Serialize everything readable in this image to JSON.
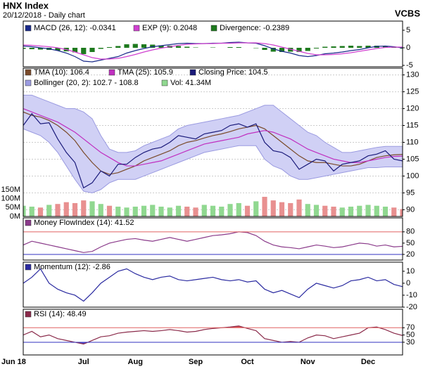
{
  "header": {
    "title": "HNX Index",
    "subtitle": "20/12/2018 - Daily chart",
    "brand": "VCBS"
  },
  "chart_data": [
    {
      "type": "line",
      "ylim": [
        -5.4,
        7.6
      ],
      "yticks": [
        5,
        0,
        -5
      ],
      "series": [
        {
          "name": "MACD (26, 12): -0.0341",
          "color": "#1a2a8a",
          "values": [
            0.5,
            0.3,
            0,
            -0.3,
            -0.8,
            -1.5,
            -2.5,
            -3.8,
            -4,
            -3.5,
            -3,
            -2.5,
            -1.5,
            -0.8,
            -0.2,
            0.3,
            0.6,
            0.9,
            1.2,
            1.3,
            1.2,
            1.2,
            1.3,
            1.3,
            1.5,
            1.6,
            1.4,
            1.3,
            0.6,
            -0.3,
            -1,
            -1.5,
            -2.2,
            -2.5,
            -2.2,
            -1.7,
            -1.5,
            -1.2,
            -0.8,
            -0.5,
            0,
            0.4,
            0.5,
            0.3,
            -0.0341
          ]
        },
        {
          "name": "EXP (9): 0.2048",
          "color": "#d040d0",
          "values": [
            0.8,
            0.7,
            0.5,
            0.3,
            0,
            -0.5,
            -1.2,
            -2,
            -2.8,
            -3.2,
            -3.2,
            -3,
            -2.5,
            -1.9,
            -1.2,
            -0.6,
            -0.1,
            0.3,
            0.7,
            1,
            1.1,
            1.2,
            1.2,
            1.3,
            1.3,
            1.4,
            1.4,
            1.4,
            1.2,
            0.8,
            0.2,
            -0.4,
            -1,
            -1.6,
            -2,
            -2,
            -1.9,
            -1.7,
            -1.4,
            -1,
            -0.6,
            -0.2,
            0.1,
            0.2,
            0.2048
          ]
        },
        {
          "name": "Divergence: -0.2389",
          "type": "bar",
          "color": "#1e7a1e",
          "values": [
            -0.3,
            -0.4,
            -0.5,
            -0.6,
            -0.8,
            -1,
            -1.3,
            -1.8,
            -1.2,
            -0.3,
            0.2,
            0.5,
            1,
            1.1,
            1,
            0.9,
            0.7,
            0.6,
            0.5,
            0.3,
            0.1,
            0,
            0.1,
            0,
            0.2,
            0.2,
            0,
            -0.1,
            -0.6,
            -1.1,
            -1.2,
            -1.1,
            -1.2,
            -0.9,
            -0.2,
            0.3,
            0.4,
            0.5,
            0.6,
            0.5,
            0.6,
            0.6,
            0.4,
            0.1,
            -0.2389
          ]
        }
      ]
    },
    {
      "type": "line",
      "ylim": [
        88,
        132
      ],
      "yticks": [
        90,
        95,
        100,
        105,
        110,
        115,
        120,
        125,
        130
      ],
      "grid": true,
      "y2lim": [
        0,
        830
      ],
      "y2ticks": [
        {
          "value": 0,
          "label": "0M"
        },
        {
          "value": 50,
          "label": "50M"
        },
        {
          "value": 100,
          "label": "100M"
        },
        {
          "value": 150,
          "label": "150M"
        }
      ],
      "series": [
        {
          "name": "TMA (10): 106.4",
          "color": "#7a4a2a",
          "values": [
            119,
            118,
            117.5,
            116.5,
            115,
            113,
            110.5,
            107,
            104,
            101.5,
            100.5,
            101,
            102,
            103,
            104.5,
            105.5,
            106.5,
            107.5,
            109,
            110,
            110.5,
            111.3,
            112,
            112.5,
            113.2,
            114,
            114.5,
            115,
            114,
            112,
            110,
            108,
            106,
            104.5,
            104,
            104,
            103.5,
            103,
            103,
            103.5,
            104.5,
            105.5,
            106,
            106.3,
            106.4
          ]
        },
        {
          "name": "TMA (25): 105.9",
          "color": "#c030c0",
          "values": [
            120,
            119,
            118,
            117,
            116,
            114.5,
            113,
            111,
            109,
            107,
            105.5,
            104,
            103,
            103,
            103.5,
            104,
            104.5,
            105.5,
            106.5,
            107.5,
            108.5,
            109.5,
            110,
            110.5,
            111,
            111.5,
            112.5,
            113,
            113.5,
            113,
            112,
            111,
            109.5,
            108,
            107,
            106,
            105,
            104.5,
            104,
            104,
            104.5,
            105,
            105.5,
            105.8,
            105.9
          ]
        },
        {
          "name": "Closing Price: 104.5",
          "color": "#1a1a7a",
          "values": [
            115,
            118.5,
            115.5,
            115.8,
            111,
            107,
            104,
            96.5,
            98,
            101.5,
            100,
            103.5,
            103.5,
            105.5,
            107,
            108,
            108.5,
            110,
            112,
            111.5,
            111,
            112.5,
            113,
            113.5,
            115,
            115.5,
            114.5,
            115.5,
            110,
            107.5,
            107,
            105.5,
            102,
            103.5,
            105,
            104.5,
            101.5,
            103.5,
            104,
            104.5,
            106,
            106.5,
            107.5,
            105,
            104.5
          ]
        },
        {
          "name": "Bollinger (20, 2): 102.7 - 108.8",
          "type": "band",
          "color": "#9a9ae0",
          "upper": [
            124,
            124,
            123,
            122,
            121,
            120,
            120,
            119,
            117,
            112,
            108,
            107,
            107,
            107.5,
            109,
            110,
            111,
            112,
            114,
            115,
            115.5,
            116,
            116.5,
            117,
            117.5,
            118,
            119,
            120,
            121,
            121,
            119,
            117,
            115,
            113,
            112,
            110,
            108.5,
            107,
            107,
            107.5,
            108,
            108.5,
            108.8,
            108.8,
            108.8
          ],
          "lower": [
            114,
            113,
            112,
            110,
            107,
            103,
            99,
            95.5,
            95,
            96,
            98,
            99,
            99,
            99,
            100,
            101,
            102,
            103,
            104,
            105,
            106,
            107,
            107.5,
            108,
            108.5,
            109,
            109,
            109,
            105,
            103,
            102,
            100,
            99,
            99,
            99.5,
            100,
            100.5,
            101,
            101.5,
            102,
            102.5,
            102.5,
            102.7,
            102.7,
            102.7
          ]
        },
        {
          "name": "Vol: 41.34M",
          "type": "bar",
          "axis": "y2",
          "color": "#90d890",
          "values": [
            60,
            55,
            50,
            65,
            70,
            80,
            75,
            90,
            85,
            70,
            60,
            55,
            50,
            55,
            60,
            65,
            55,
            50,
            60,
            55,
            50,
            65,
            60,
            55,
            70,
            75,
            60,
            85,
            110,
            90,
            80,
            75,
            95,
            70,
            65,
            60,
            55,
            50,
            55,
            60,
            65,
            60,
            55,
            50,
            41.34
          ]
        }
      ]
    },
    {
      "type": "line",
      "ylim": [
        5,
        117
      ],
      "yticks": [
        80,
        50,
        20
      ],
      "hlines": [
        {
          "value": 80,
          "color": "#e06060"
        },
        {
          "value": 20,
          "color": "#3030c0"
        }
      ],
      "series": [
        {
          "name": "Money FlowIndex (14): 41.52",
          "color": "#8a3a8a",
          "values": [
            45,
            55,
            50,
            45,
            40,
            35,
            30,
            25,
            28,
            40,
            50,
            55,
            60,
            62,
            58,
            55,
            60,
            65,
            60,
            55,
            60,
            65,
            70,
            72,
            75,
            80,
            78,
            70,
            55,
            45,
            40,
            38,
            35,
            40,
            45,
            42,
            38,
            40,
            45,
            50,
            48,
            42,
            45,
            40,
            41.52
          ]
        }
      ]
    },
    {
      "type": "line",
      "ylim": [
        -20,
        17.6
      ],
      "yticks": [
        10,
        0,
        -10,
        -20
      ],
      "series": [
        {
          "name": "Momentum (12): -2.86",
          "color": "#2a2aa0",
          "values": [
            0,
            5,
            12,
            0,
            -5,
            -8,
            -10,
            -15,
            -8,
            0,
            5,
            10,
            12,
            8,
            5,
            3,
            5,
            6,
            3,
            2,
            3,
            4,
            5,
            3,
            2,
            3,
            1,
            2,
            -5,
            -8,
            -6,
            -9,
            -12,
            -5,
            0,
            -2,
            -4,
            -2,
            2,
            3,
            5,
            2,
            3,
            -1,
            -2.86
          ]
        }
      ]
    },
    {
      "type": "line",
      "ylim": [
        -5,
        121
      ],
      "yticks": [
        70,
        50,
        30
      ],
      "hlines": [
        {
          "value": 70,
          "color": "#e06060"
        },
        {
          "value": 30,
          "color": "#3030c0"
        }
      ],
      "fill_above": 70,
      "fill_below": 30,
      "categories": [
        "Jun 18",
        null,
        null,
        null,
        null,
        null,
        null,
        "Jul",
        null,
        null,
        null,
        null,
        null,
        "Aug",
        null,
        null,
        null,
        null,
        null,
        null,
        "Sep",
        null,
        null,
        null,
        null,
        null,
        "Oct",
        null,
        null,
        null,
        null,
        null,
        null,
        "Nov",
        null,
        null,
        null,
        null,
        null,
        null,
        "Dec",
        null,
        null,
        null,
        null
      ],
      "series": [
        {
          "name": "RSI (14): 48.49",
          "color": "#8a2a4a",
          "values": [
            50,
            60,
            45,
            50,
            40,
            35,
            30,
            25,
            35,
            45,
            48,
            55,
            58,
            60,
            62,
            60,
            62,
            65,
            62,
            58,
            60,
            65,
            68,
            70,
            72,
            75,
            68,
            62,
            40,
            35,
            30,
            32,
            30,
            42,
            50,
            48,
            40,
            45,
            50,
            55,
            70,
            72,
            65,
            55,
            48.49
          ]
        }
      ]
    }
  ]
}
